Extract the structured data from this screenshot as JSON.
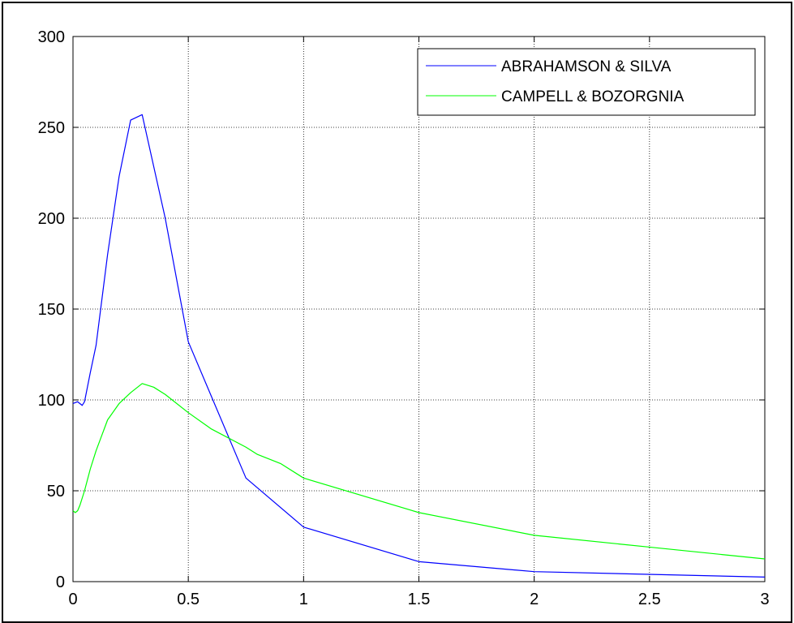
{
  "chart_data": {
    "type": "line",
    "title": "",
    "xlabel": "",
    "ylabel": "",
    "xlim": [
      0,
      3
    ],
    "ylim": [
      0,
      300
    ],
    "xticks": [
      0,
      0.5,
      1,
      1.5,
      2,
      2.5,
      3
    ],
    "yticks": [
      0,
      50,
      100,
      150,
      200,
      250,
      300
    ],
    "xtick_labels": [
      "0",
      "0.5",
      "1",
      "1.5",
      "2",
      "2.5",
      "3"
    ],
    "ytick_labels": [
      "0",
      "50",
      "100",
      "150",
      "200",
      "250",
      "300"
    ],
    "grid": true,
    "legend_position": "top-right",
    "series": [
      {
        "name": "ABRAHAMSON & SILVA",
        "color": "#0000ff",
        "points": [
          [
            0,
            98
          ],
          [
            0.02,
            99
          ],
          [
            0.03,
            98
          ],
          [
            0.04,
            97
          ],
          [
            0.05,
            99
          ],
          [
            0.075,
            115
          ],
          [
            0.1,
            130
          ],
          [
            0.15,
            180
          ],
          [
            0.2,
            223
          ],
          [
            0.25,
            254
          ],
          [
            0.3,
            257
          ],
          [
            0.4,
            200
          ],
          [
            0.5,
            132
          ],
          [
            0.75,
            57
          ],
          [
            1.0,
            30
          ],
          [
            1.5,
            11
          ],
          [
            2.0,
            5.5
          ],
          [
            3.0,
            2.5
          ]
        ]
      },
      {
        "name": "CAMPELL & BOZORGNIA",
        "color": "#00ff00",
        "points": [
          [
            0,
            39
          ],
          [
            0.01,
            38
          ],
          [
            0.02,
            39
          ],
          [
            0.03,
            42
          ],
          [
            0.05,
            50
          ],
          [
            0.075,
            62
          ],
          [
            0.1,
            72
          ],
          [
            0.15,
            89
          ],
          [
            0.2,
            98
          ],
          [
            0.25,
            104
          ],
          [
            0.3,
            109
          ],
          [
            0.35,
            107
          ],
          [
            0.4,
            103
          ],
          [
            0.5,
            93
          ],
          [
            0.6,
            84
          ],
          [
            0.75,
            74
          ],
          [
            0.8,
            70
          ],
          [
            0.9,
            65
          ],
          [
            1.0,
            57
          ],
          [
            1.5,
            38
          ],
          [
            2.0,
            25.5
          ],
          [
            2.5,
            19
          ],
          [
            3.0,
            12.5
          ]
        ]
      }
    ]
  }
}
